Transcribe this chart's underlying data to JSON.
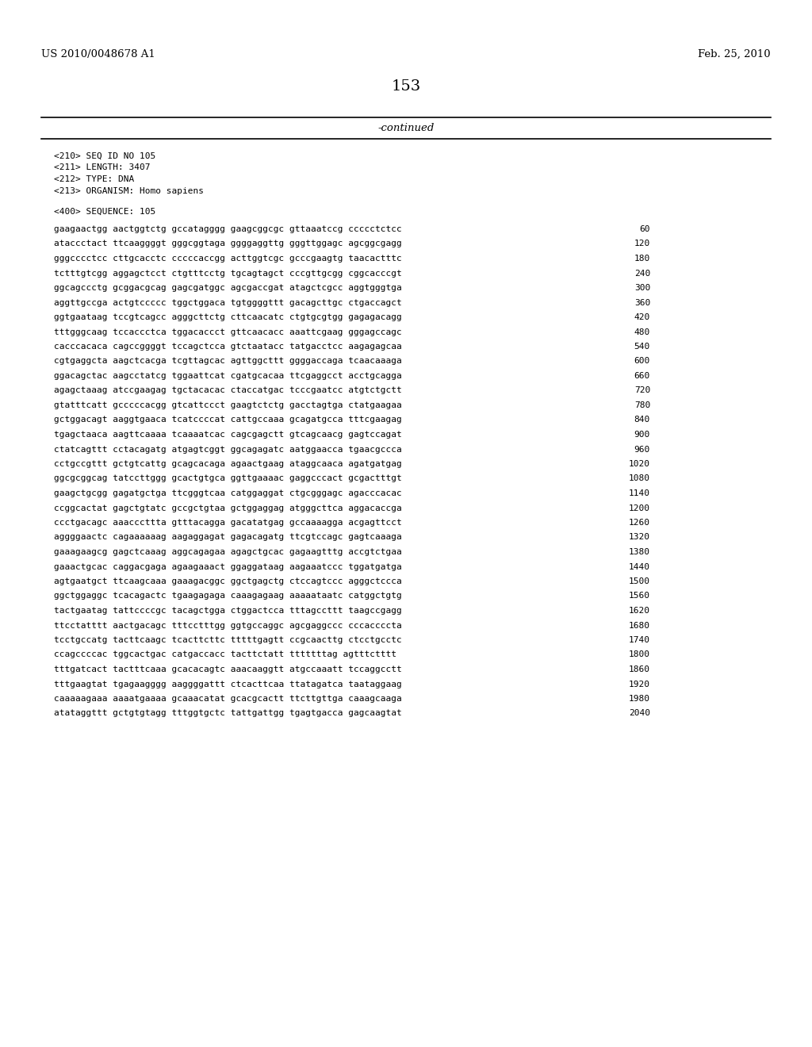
{
  "left_header": "US 2010/0048678 A1",
  "right_header": "Feb. 25, 2010",
  "page_number": "153",
  "continued_text": "-continued",
  "metadata": [
    "<210> SEQ ID NO 105",
    "<211> LENGTH: 3407",
    "<212> TYPE: DNA",
    "<213> ORGANISM: Homo sapiens"
  ],
  "sequence_label": "<400> SEQUENCE: 105",
  "sequence_lines": [
    [
      "gaagaactgg aactggtctg gccatagggg gaagcggcgc gttaaatccg ccccctctcc",
      "60"
    ],
    [
      "ataccctact ttcaaggggt gggcggtaga ggggaggttg gggttggagc agcggcgagg",
      "120"
    ],
    [
      "gggcccctcc cttgcacctc cccccaccgg acttggtcgc gcccgaagtg taacactttc",
      "180"
    ],
    [
      "tctttgtcgg aggagctcct ctgtttcctg tgcagtagct cccgttgcgg cggcacccgt",
      "240"
    ],
    [
      "ggcagccctg gcggacgcag gagcgatggc agcgaccgat atagctcgcc aggtgggtga",
      "300"
    ],
    [
      "aggttgccga actgtccccc tggctggaca tgtggggttt gacagcttgc ctgaccagct",
      "360"
    ],
    [
      "ggtgaataag tccgtcagcc agggcttctg cttcaacatc ctgtgcgtgg gagagacagg",
      "420"
    ],
    [
      "tttgggcaag tccaccctca tggacaccct gttcaacacc aaattcgaag gggagccagc",
      "480"
    ],
    [
      "cacccacaca cagccggggt tccagctcca gtctaatacc tatgacctcc aagagagcaa",
      "540"
    ],
    [
      "cgtgaggcta aagctcacga tcgttagcac agttggcttt ggggaccaga tcaacaaaga",
      "600"
    ],
    [
      "ggacagctac aagcctatcg tggaattcat cgatgcacaa ttcgaggcct acctgcagga",
      "660"
    ],
    [
      "agagctaaag atccgaagag tgctacacac ctaccatgac tcccgaatcc atgtctgctt",
      "720"
    ],
    [
      "gtatttcatt gcccccacgg gtcattccct gaagtctctg gacctagtga ctatgaagaa",
      "780"
    ],
    [
      "gctggacagt aaggtgaaca tcatccccat cattgccaaa gcagatgcca tttcgaagag",
      "840"
    ],
    [
      "tgagctaaca aagttcaaaa tcaaaatcac cagcgagctt gtcagcaacg gagtccagat",
      "900"
    ],
    [
      "ctatcagttt cctacagatg atgagtcggt ggcagagatc aatggaacca tgaacgccca",
      "960"
    ],
    [
      "cctgccgttt gctgtcattg gcagcacaga agaactgaag ataggcaaca agatgatgag",
      "1020"
    ],
    [
      "ggcgcggcag tatccttggg gcactgtgca ggttgaaaac gaggcccact gcgactttgt",
      "1080"
    ],
    [
      "gaagctgcgg gagatgctga ttcgggtcaa catggaggat ctgcgggagc agacccacac",
      "1140"
    ],
    [
      "ccggcactat gagctgtatc gccgctgtaa gctggaggag atgggcttca aggacaccga",
      "1200"
    ],
    [
      "ccctgacagc aaacccttta gtttacagga gacatatgag gccaaaaggа acgagttcct",
      "1260"
    ],
    [
      "aggggaactc cagaaaaaag aagaggagat gagacagatg ttcgtccagc gagtcaaaga",
      "1320"
    ],
    [
      "gaaagaagcg gagctcaaag aggcagagaa agagctgcac gagaagtttg accgtctgaa",
      "1380"
    ],
    [
      "gaaactgcac caggacgaga agaagaaact ggaggataag aagaaatccc tggatgatga",
      "1440"
    ],
    [
      "agtgaatgct ttcaagcaaa gaaagacggc ggctgagctg ctccagtccc agggctccca",
      "1500"
    ],
    [
      "ggctggaggc tcacagactc tgaagagaga caaagagaag aaaaataatc catggctgtg",
      "1560"
    ],
    [
      "tactgaatag tattccccgc tacagctgga ctggactcca tttagccttt taagccgagg",
      "1620"
    ],
    [
      "ttcctatttt aactgacagc tttcctttgg ggtgccaggc agcgaggccc cccaccccta",
      "1680"
    ],
    [
      "tcctgccatg tacttcaagc tcacttcttc tttttgagtt ccgcaacttg ctcctgcctc",
      "1740"
    ],
    [
      "ccagccccac tggcactgac catgaccacc tacttctatt tttttttag agtttctttt",
      "1800"
    ],
    [
      "tttgatcact tactttcaaa gcacacagtc aaacaaggtt atgccaaatt tccaggcctt",
      "1860"
    ],
    [
      "tttgaagtat tgagaagggg aaggggattt ctcacttcaa ttatagatca taataggaag",
      "1920"
    ],
    [
      "caaaaagaaa aaaatgaaaa gcaaacatat gcacgcactt ttcttgttga caaagcaaga",
      "1980"
    ],
    [
      "atataggttt gctgtgtagg tttggtgctc tattgattgg tgagtgacca gagcaagtat",
      "2040"
    ]
  ],
  "background_color": "#ffffff",
  "text_color": "#000000",
  "line_color": "#000000"
}
